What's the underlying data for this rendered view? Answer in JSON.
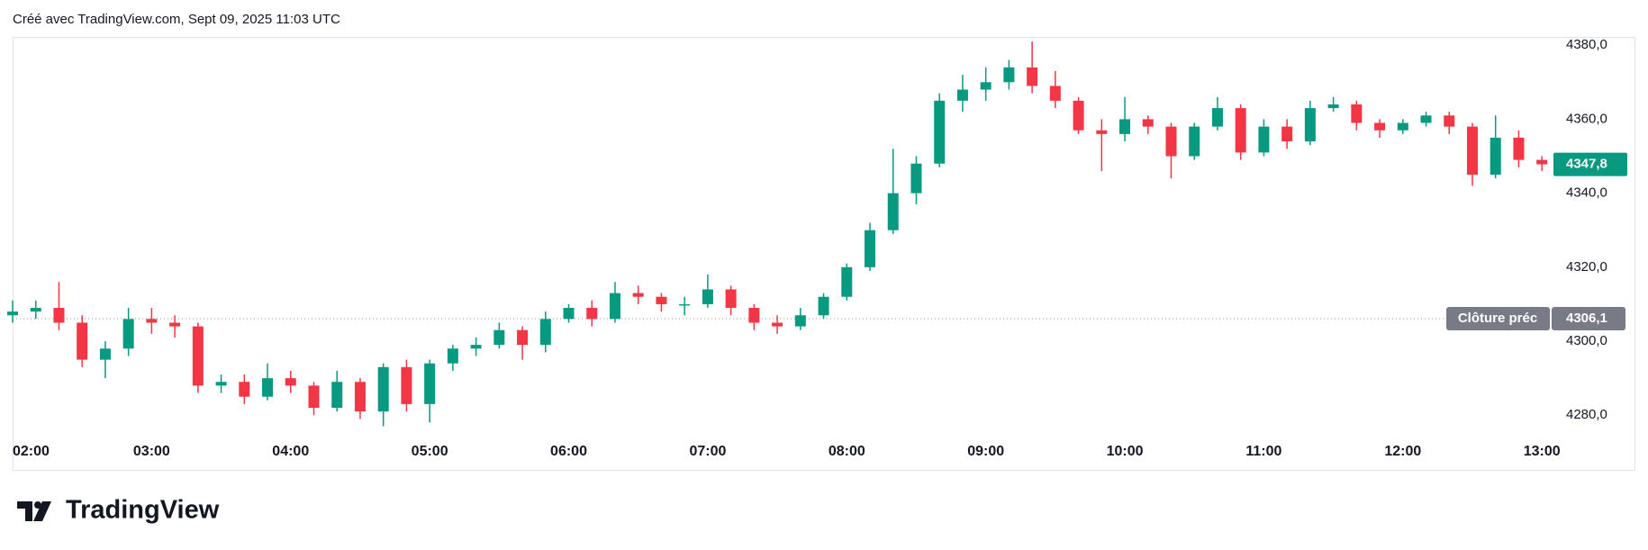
{
  "header": "Créé avec TradingView.com, Sept 09, 2025 11:03 UTC",
  "brand": "TradingView",
  "chart_data": {
    "type": "candlestick",
    "categories": [
      "02:00",
      null,
      null,
      null,
      null,
      null,
      "03:00",
      null,
      null,
      null,
      null,
      null,
      "04:00",
      null,
      null,
      null,
      null,
      null,
      "05:00",
      null,
      null,
      null,
      null,
      null,
      "06:00",
      null,
      null,
      null,
      null,
      null,
      "07:00",
      null,
      null,
      null,
      null,
      null,
      "08:00",
      null,
      null,
      null,
      null,
      null,
      "09:00",
      null,
      null,
      null,
      null,
      null,
      "10:00",
      null,
      null,
      null,
      null,
      null,
      "11:00",
      null,
      null,
      null,
      null,
      null,
      "12:00",
      null,
      null,
      null,
      null,
      null,
      "13:00"
    ],
    "open": [
      4307,
      4308,
      4309,
      4305,
      4295,
      4298,
      4306,
      4305,
      4304,
      4288,
      4289,
      4285,
      4290,
      4288,
      4282,
      4289,
      4281,
      4293,
      4283,
      4294,
      4298,
      4299,
      4303,
      4299,
      4306,
      4309,
      4306,
      4313,
      4312,
      4310,
      4310,
      4314,
      4309,
      4305,
      4304,
      4307,
      4312,
      4320,
      4330,
      4340,
      4348,
      4365,
      4368,
      4370,
      4374,
      4369,
      4365,
      4357,
      4356,
      4360,
      4358,
      4350,
      4358,
      4363,
      4351,
      4358,
      4354,
      4363,
      4364,
      4359,
      4357,
      4359,
      4361,
      4358,
      4345,
      4355,
      4349
    ],
    "high": [
      4311,
      4311,
      4316,
      4307,
      4300,
      4309,
      4309,
      4307,
      4305,
      4291,
      4291,
      4294,
      4292,
      4289,
      4292,
      4290,
      4294,
      4295,
      4295,
      4299,
      4301,
      4305,
      4304,
      4308,
      4310,
      4311,
      4316,
      4315,
      4313,
      4312,
      4318,
      4315,
      4310,
      4307,
      4309,
      4313,
      4321,
      4332,
      4352,
      4350,
      4367,
      4372,
      4374,
      4376,
      4381,
      4373,
      4366,
      4360,
      4366,
      4361,
      4359,
      4359,
      4366,
      4364,
      4360,
      4360,
      4365,
      4366,
      4365,
      4360,
      4360,
      4362,
      4362,
      4359,
      4361,
      4357,
      4350
    ],
    "low": [
      4305,
      4306,
      4303,
      4293,
      4290,
      4296,
      4302,
      4301,
      4286,
      4286,
      4283,
      4284,
      4286,
      4280,
      4281,
      4279,
      4277,
      4281,
      4278,
      4292,
      4296,
      4298,
      4295,
      4297,
      4305,
      4304,
      4305,
      4310,
      4308,
      4307,
      4309,
      4307,
      4303,
      4302,
      4303,
      4306,
      4311,
      4319,
      4329,
      4337,
      4347,
      4362,
      4365,
      4368,
      4367,
      4363,
      4356,
      4346,
      4354,
      4356,
      4344,
      4349,
      4357,
      4349,
      4350,
      4352,
      4353,
      4362,
      4357,
      4355,
      4356,
      4358,
      4356,
      4342,
      4344,
      4347,
      4346
    ],
    "close": [
      4308,
      4309,
      4305,
      4295,
      4298,
      4306,
      4305,
      4304,
      4288,
      4289,
      4285,
      4290,
      4288,
      4282,
      4289,
      4281,
      4293,
      4283,
      4294,
      4298,
      4299,
      4303,
      4299,
      4306,
      4309,
      4306,
      4313,
      4312,
      4310,
      4310,
      4314,
      4309,
      4305,
      4304,
      4307,
      4312,
      4320,
      4330,
      4340,
      4348,
      4365,
      4368,
      4370,
      4374,
      4369,
      4365,
      4357,
      4356,
      4360,
      4358,
      4350,
      4358,
      4363,
      4351,
      4358,
      4354,
      4363,
      4364,
      4359,
      4357,
      4359,
      4361,
      4358,
      4345,
      4355,
      4349,
      4347.8
    ],
    "up_color": "#089981",
    "down_color": "#f23645",
    "ylim": [
      4273,
      4382
    ],
    "yticks": [
      {
        "value": 4280,
        "label": "4280,0"
      },
      {
        "value": 4300,
        "label": "4300,0"
      },
      {
        "value": 4320,
        "label": "4320,0"
      },
      {
        "value": 4340,
        "label": "4340,0"
      },
      {
        "value": 4360,
        "label": "4360,0"
      },
      {
        "value": 4380,
        "label": "4380,0"
      }
    ],
    "last_price": {
      "value": 4347.8,
      "label": "4347,8"
    },
    "prev_close": {
      "value": 4306.1,
      "label": "4306,1"
    },
    "prev_close_title": "Clôture préc"
  }
}
